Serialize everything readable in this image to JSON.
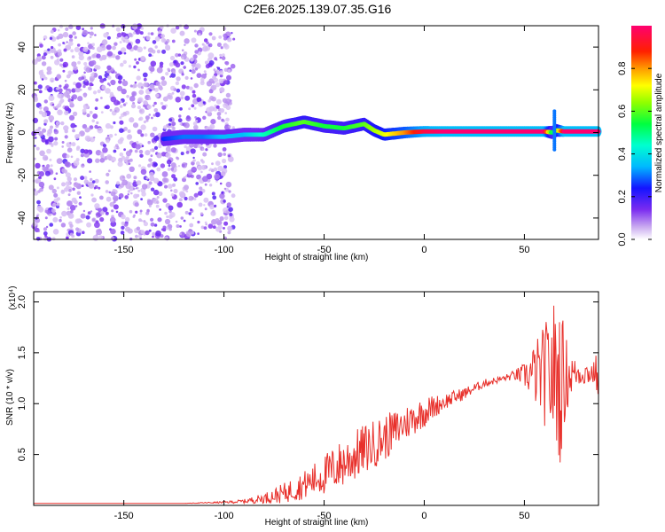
{
  "figure": {
    "title": "C2E6.2025.139.07.35.G16"
  },
  "chart_data": [
    {
      "type": "heatmap",
      "xlabel": "Height of straight line (km)",
      "ylabel": "Frequency (Hz)",
      "xlim": [
        -195,
        87
      ],
      "ylim": [
        -50,
        50
      ],
      "xticks": [
        "-150",
        "-100",
        "-50",
        "0",
        "50"
      ],
      "yticks": [
        "-40",
        "-20",
        "0",
        "20",
        "40"
      ],
      "colorbar": {
        "label": "Normalized spectral amplitude",
        "ticks": [
          "0.0",
          "0.2",
          "0.4",
          "0.6",
          "0.8"
        ],
        "range": [
          0,
          1
        ],
        "colormap": "rainbow"
      },
      "noise_region_x": [
        -195,
        -95
      ],
      "ridge": {
        "x": [
          -130,
          -120,
          -110,
          -100,
          -90,
          -80,
          -70,
          -60,
          -50,
          -40,
          -30,
          -25,
          -20,
          -10,
          0,
          10,
          20,
          30,
          40,
          50,
          60,
          64,
          66,
          70,
          80,
          87
        ],
        "y": [
          -3,
          -2,
          -2,
          -2,
          -1,
          -1,
          3,
          5,
          3,
          2,
          4,
          1,
          -1,
          0,
          0.5,
          0.5,
          0.5,
          0.5,
          0.5,
          0.5,
          0.5,
          0,
          1,
          0.5,
          0.5,
          0.5
        ],
        "amplitude": [
          0.25,
          0.3,
          0.3,
          0.35,
          0.35,
          0.45,
          0.55,
          0.6,
          0.55,
          0.55,
          0.6,
          0.65,
          0.7,
          0.8,
          0.95,
          1.0,
          1.0,
          1.0,
          1.0,
          1.0,
          1.0,
          0.5,
          0.6,
          1.0,
          1.0,
          1.0
        ]
      }
    },
    {
      "type": "line",
      "xlabel": "Height of straight line (km)",
      "ylabel": "SNR (10 * v/v)",
      "yscale_label": "(x10⁴)",
      "xlim": [
        -195,
        87
      ],
      "ylim": [
        0,
        2.1
      ],
      "xticks": [
        "-150",
        "-100",
        "-50",
        "0",
        "50"
      ],
      "yticks": [
        "0.5",
        "1.0",
        "1.5",
        "2.0"
      ],
      "series": [
        {
          "color": "#e8302b",
          "x": [
            -195,
            -180,
            -160,
            -140,
            -120,
            -100,
            -90,
            -80,
            -70,
            -60,
            -50,
            -40,
            -30,
            -20,
            -10,
            0,
            10,
            20,
            30,
            40,
            45,
            50,
            55,
            60,
            65,
            68,
            70,
            72,
            75,
            80,
            85,
            87
          ],
          "y": [
            0.02,
            0.02,
            0.02,
            0.02,
            0.02,
            0.03,
            0.04,
            0.07,
            0.12,
            0.2,
            0.3,
            0.42,
            0.55,
            0.66,
            0.8,
            0.92,
            1.02,
            1.1,
            1.2,
            1.25,
            1.28,
            1.28,
            1.3,
            1.28,
            1.3,
            1.2,
            1.25,
            1.28,
            1.3,
            1.3,
            1.3,
            1.3
          ],
          "noise": [
            0,
            0,
            0,
            0,
            0,
            0.01,
            0.02,
            0.05,
            0.1,
            0.14,
            0.2,
            0.25,
            0.25,
            0.23,
            0.18,
            0.15,
            0.08,
            0.06,
            0.04,
            0.03,
            0.05,
            0.12,
            0.3,
            0.5,
            0.75,
            0.8,
            0.5,
            0.3,
            0.15,
            0.12,
            0.12,
            0.3
          ]
        }
      ]
    }
  ]
}
